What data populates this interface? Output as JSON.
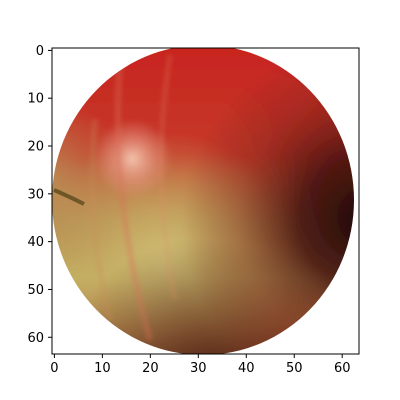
{
  "chart_data": {
    "type": "image",
    "title": "",
    "xlabel": "",
    "ylabel": "",
    "subject": "apple",
    "image_size": [
      64,
      64
    ],
    "x_ticks": [
      0,
      10,
      20,
      30,
      40,
      50,
      60
    ],
    "y_ticks": [
      0,
      10,
      20,
      30,
      40,
      50,
      60
    ],
    "xlim": [
      -0.5,
      63.5
    ],
    "ylim": [
      63.5,
      -0.5
    ],
    "grid": false,
    "colors": {
      "apple_red": "#c72a22",
      "apple_yellow": "#c4b262",
      "shadow": "#3d0f0c",
      "highlight": "#efb49c",
      "background": "#ffffff",
      "axis": "#000000"
    }
  }
}
